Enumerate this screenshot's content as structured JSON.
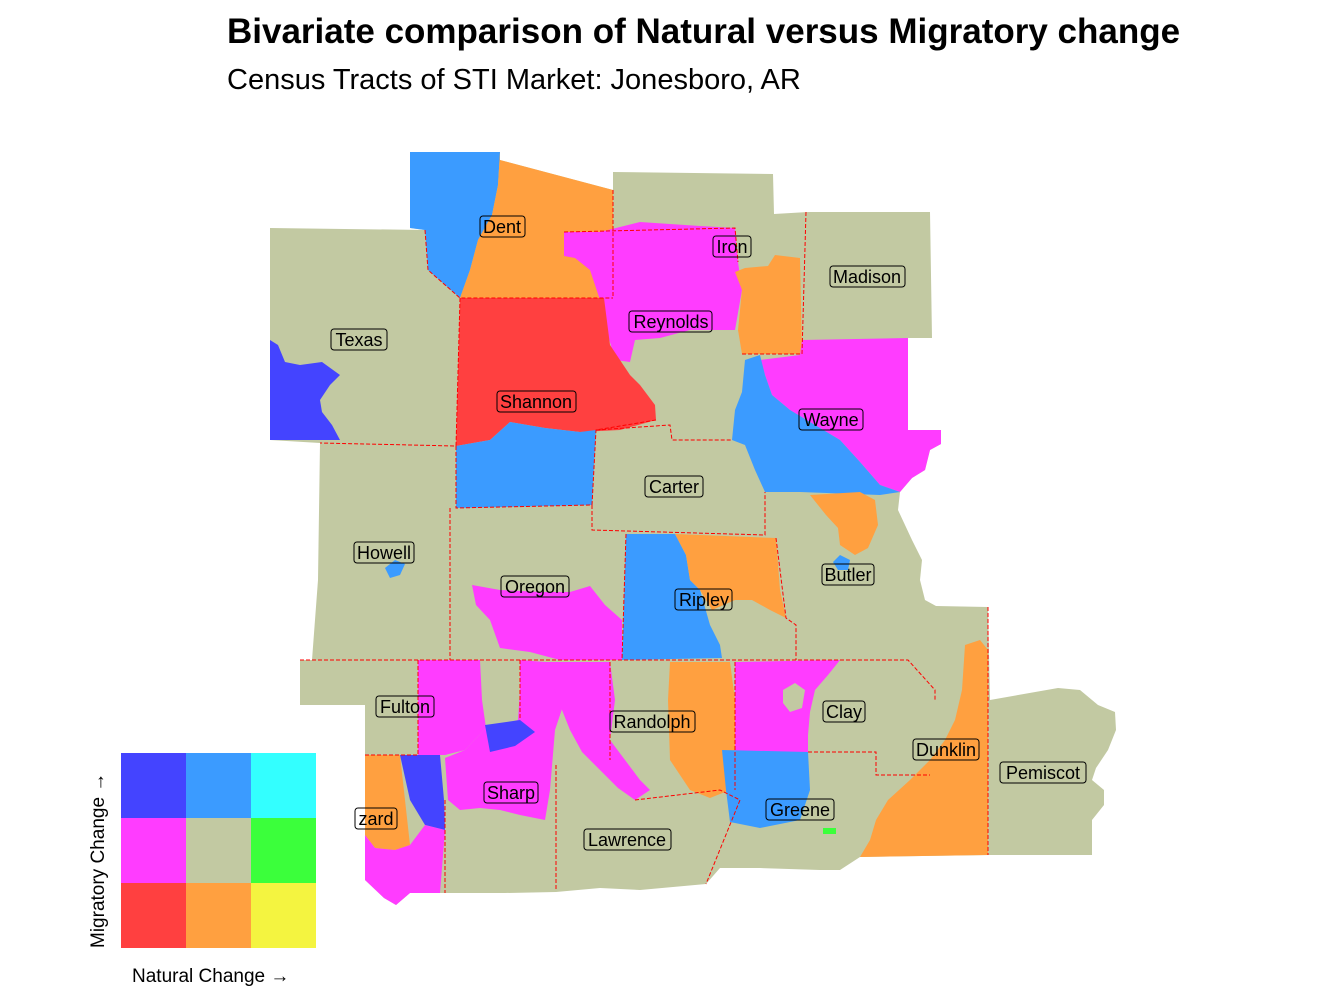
{
  "title": "Bivariate comparison of Natural versus Migratory change",
  "subtitle": "Census Tracts of STI Market: Jonesboro, AR",
  "colors": {
    "neutral": "#c2c9a2",
    "low_nat_high_mig": "#4444ff",
    "mid_nat_high_mig": "#3b9bff",
    "high_nat_high_mig": "#33ffff",
    "low_nat_mid_mig": "#ff3cff",
    "mid_nat_mid_mig": "#c2c9a2",
    "high_nat_mid_mig": "#3bff3b",
    "low_nat_low_mig": "#ff4040",
    "mid_nat_low_mig": "#ffa040",
    "high_nat_low_mig": "#f4f440",
    "border": "#ff0000"
  },
  "counties": [
    {
      "name": "Dent"
    },
    {
      "name": "Iron"
    },
    {
      "name": "Madison"
    },
    {
      "name": "Texas"
    },
    {
      "name": "Reynolds"
    },
    {
      "name": "Shannon"
    },
    {
      "name": "Wayne"
    },
    {
      "name": "Carter"
    },
    {
      "name": "Howell"
    },
    {
      "name": "Butler"
    },
    {
      "name": "Oregon"
    },
    {
      "name": "Ripley"
    },
    {
      "name": "Fulton"
    },
    {
      "name": "Randolph"
    },
    {
      "name": "Clay"
    },
    {
      "name": "Dunklin"
    },
    {
      "name": "Pemiscot"
    },
    {
      "name": "Sharp"
    },
    {
      "name": "Greene"
    },
    {
      "name": "Izard",
      "visible_text": "zard"
    },
    {
      "name": "Lawrence"
    }
  ],
  "legend": {
    "x_label": "Natural Change →",
    "y_label": "Migratory Change →",
    "grid": [
      [
        "#4444ff",
        "#3b9bff",
        "#33ffff"
      ],
      [
        "#ff3cff",
        "#c2c9a2",
        "#3bff3b"
      ],
      [
        "#ff4040",
        "#ffa040",
        "#f4f440"
      ]
    ]
  }
}
